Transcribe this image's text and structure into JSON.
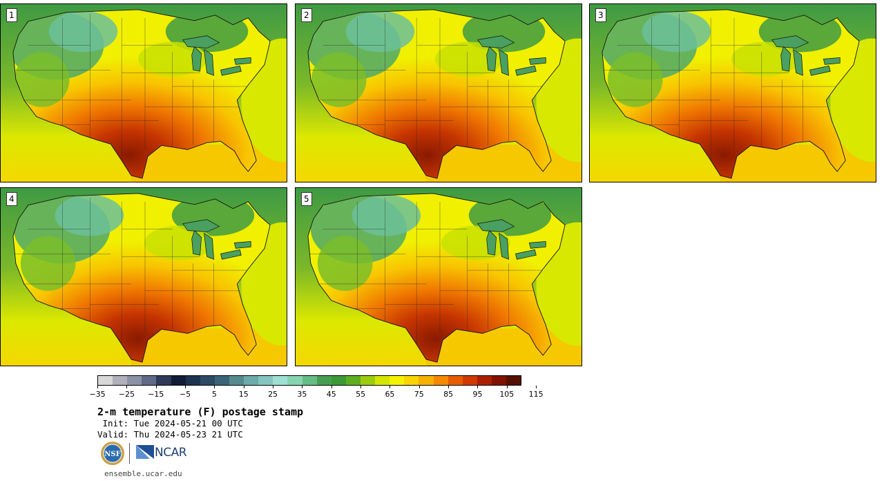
{
  "figure": {
    "title": "2-m temperature (F) postage stamp",
    "init": " Init: Tue 2024-05-21 00 UTC",
    "valid": "Valid: Thu 2024-05-23 21 UTC",
    "url": "ensemble.ucar.edu",
    "logo_ncar": "NCAR",
    "logo_nsf": "NSF"
  },
  "members": [
    {
      "label": "1"
    },
    {
      "label": "2"
    },
    {
      "label": "3"
    },
    {
      "label": "4"
    },
    {
      "label": "5"
    }
  ],
  "colorbar": {
    "tick_labels": [
      "−35",
      "−25",
      "−15",
      "−5",
      "5",
      "15",
      "25",
      "35",
      "45",
      "55",
      "65",
      "75",
      "85",
      "95",
      "105",
      "115"
    ],
    "colors": [
      "#d8d8d8",
      "#b0b0bb",
      "#8c92a6",
      "#606985",
      "#2f3a58",
      "#111d36",
      "#1e3352",
      "#2b4a66",
      "#3c6478",
      "#558a8f",
      "#6eaaaa",
      "#85c5bf",
      "#9fe0d5",
      "#86d4b0",
      "#64bc86",
      "#479e52",
      "#3c9a34",
      "#5fae20",
      "#9ccc0e",
      "#d4e600",
      "#f4f200",
      "#f8d500",
      "#f7b200",
      "#f58a00",
      "#e65d00",
      "#d03a00",
      "#a92000",
      "#801200",
      "#561000"
    ]
  }
}
